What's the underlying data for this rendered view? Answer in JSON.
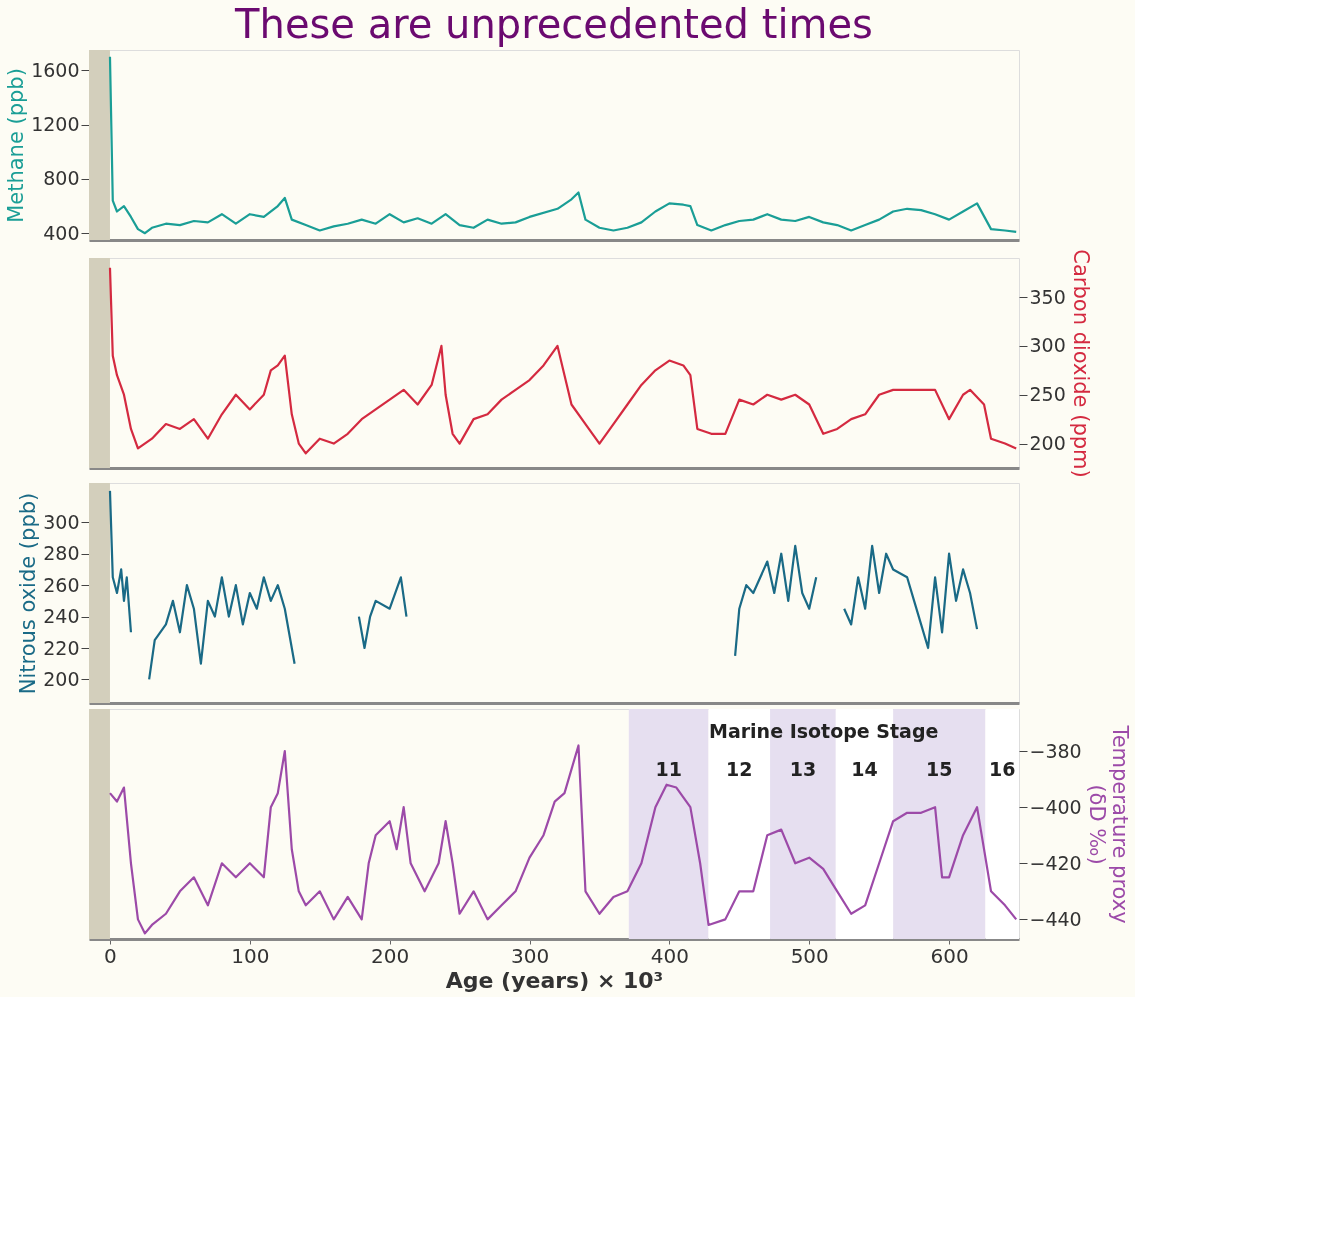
{
  "chart_data": [
    {
      "type": "line",
      "title": "These are unprecedented times",
      "ylabel": "Methane (ppb)",
      "xlim": [
        -15,
        650
      ],
      "ylim": [
        350,
        1750
      ],
      "yticks": [
        400,
        800,
        1200,
        1600
      ],
      "tick_labels": "y",
      "grid": false,
      "line_style": "solid",
      "marker": "none",
      "bands": [
        {
          "axis": "x",
          "from": -15,
          "to": 0,
          "color": "#d3cfbc"
        }
      ],
      "series": [
        {
          "color": "#1a9e96",
          "x": [
            0,
            2,
            5,
            10,
            15,
            20,
            25,
            30,
            40,
            50,
            60,
            70,
            80,
            90,
            100,
            110,
            120,
            125,
            130,
            140,
            150,
            160,
            170,
            180,
            190,
            200,
            210,
            220,
            230,
            240,
            250,
            260,
            270,
            280,
            290,
            300,
            320,
            330,
            335,
            340,
            350,
            360,
            370,
            380,
            390,
            400,
            410,
            415,
            420,
            430,
            440,
            450,
            460,
            470,
            480,
            490,
            500,
            510,
            520,
            530,
            540,
            550,
            560,
            570,
            580,
            590,
            600,
            610,
            620,
            630,
            640,
            648
          ],
          "values": [
            1700,
            640,
            560,
            600,
            520,
            430,
            400,
            440,
            470,
            460,
            490,
            480,
            540,
            470,
            540,
            520,
            600,
            660,
            500,
            460,
            420,
            450,
            470,
            500,
            470,
            540,
            480,
            510,
            470,
            540,
            460,
            440,
            500,
            470,
            480,
            520,
            580,
            650,
            700,
            500,
            440,
            420,
            440,
            480,
            560,
            620,
            610,
            600,
            460,
            420,
            460,
            490,
            500,
            540,
            500,
            490,
            520,
            480,
            460,
            420,
            460,
            500,
            560,
            580,
            570,
            540,
            500,
            560,
            620,
            430,
            420,
            410
          ]
        }
      ]
    },
    {
      "type": "line",
      "y2label": "Carbon dioxide (ppm)",
      "xlim": [
        -15,
        650
      ],
      "y2lim": [
        175,
        390
      ],
      "y2ticks": [
        200,
        250,
        300,
        350
      ],
      "tick_labels": "y",
      "grid": false,
      "line_style": "solid",
      "marker": "none",
      "bands": [
        {
          "axis": "x",
          "from": -15,
          "to": 0,
          "color": "#d3cfbc"
        }
      ],
      "series": [
        {
          "color": "#d42a40",
          "axis": "y2",
          "x": [
            0,
            2,
            5,
            10,
            15,
            20,
            30,
            40,
            50,
            60,
            70,
            80,
            90,
            100,
            110,
            115,
            120,
            125,
            130,
            135,
            140,
            150,
            160,
            170,
            180,
            190,
            200,
            210,
            220,
            230,
            237,
            240,
            245,
            250,
            260,
            270,
            280,
            290,
            300,
            310,
            320,
            325,
            330,
            340,
            350,
            360,
            370,
            380,
            390,
            400,
            410,
            415,
            420,
            430,
            440,
            450,
            460,
            470,
            480,
            490,
            500,
            510,
            520,
            530,
            540,
            550,
            560,
            570,
            580,
            590,
            600,
            610,
            615,
            625,
            630,
            640,
            648
          ],
          "values": [
            380,
            290,
            270,
            250,
            215,
            195,
            205,
            220,
            215,
            225,
            205,
            230,
            250,
            235,
            250,
            275,
            280,
            290,
            230,
            200,
            190,
            205,
            200,
            210,
            225,
            235,
            245,
            255,
            240,
            260,
            300,
            250,
            210,
            200,
            225,
            230,
            245,
            255,
            265,
            280,
            300,
            270,
            240,
            220,
            200,
            220,
            240,
            260,
            275,
            285,
            280,
            270,
            215,
            210,
            210,
            245,
            240,
            250,
            245,
            250,
            240,
            210,
            215,
            225,
            230,
            250,
            255,
            255,
            255,
            255,
            225,
            250,
            255,
            240,
            205,
            200,
            195
          ]
        }
      ]
    },
    {
      "type": "line",
      "ylabel": "Nitrous oxide (ppb)",
      "xlim": [
        -15,
        650
      ],
      "ylim": [
        185,
        325
      ],
      "yticks": [
        200,
        220,
        240,
        260,
        280,
        300
      ],
      "tick_labels": "y",
      "grid": false,
      "line_style": "solid",
      "marker": "none",
      "bands": [
        {
          "axis": "x",
          "from": -15,
          "to": 0,
          "color": "#d3cfbc"
        }
      ],
      "series": [
        {
          "color": "#1a6a86",
          "x": [
            0,
            2,
            5,
            8,
            10,
            12,
            15,
            20,
            28,
            32,
            40,
            45,
            50,
            55,
            60,
            65,
            70,
            75,
            80,
            85,
            90,
            95,
            100,
            105,
            110,
            115,
            120,
            125,
            128,
            132,
            140,
            178,
            182,
            186,
            190,
            200,
            208,
            212,
            300,
            447,
            450,
            455,
            460,
            470,
            475,
            480,
            485,
            490,
            495,
            500,
            505,
            515,
            525,
            530,
            535,
            540,
            545,
            550,
            555,
            560,
            570,
            575,
            580,
            585,
            590,
            595,
            600,
            605,
            610,
            615,
            620
          ],
          "values": [
            320,
            265,
            255,
            270,
            250,
            265,
            230,
            null,
            200,
            225,
            235,
            250,
            230,
            260,
            245,
            210,
            250,
            240,
            265,
            240,
            260,
            235,
            255,
            245,
            265,
            250,
            260,
            245,
            230,
            210,
            null,
            240,
            220,
            240,
            250,
            245,
            265,
            240,
            null,
            215,
            245,
            260,
            255,
            275,
            255,
            280,
            250,
            285,
            255,
            245,
            265,
            null,
            245,
            235,
            265,
            245,
            285,
            255,
            280,
            270,
            265,
            250,
            235,
            220,
            265,
            230,
            280,
            250,
            270,
            255,
            232
          ]
        }
      ]
    },
    {
      "type": "line",
      "xlabel": "Age (years) × 10³",
      "y2label": "Temperature proxy\n(δD ‰)",
      "xlim": [
        -15,
        650
      ],
      "xticks": [
        0,
        100,
        200,
        300,
        400,
        500,
        600
      ],
      "y2lim": [
        -447,
        -365
      ],
      "y2ticks": [
        {
          "value": -380,
          "label": "−380"
        },
        {
          "value": -400,
          "label": "−400"
        },
        {
          "value": -420,
          "label": "−420"
        },
        {
          "value": -440,
          "label": "−440"
        }
      ],
      "grid": false,
      "line_style": "solid",
      "marker": "none",
      "annotations": [
        "Marine Isotope Stage"
      ],
      "bands": [
        {
          "axis": "x",
          "from": -15,
          "to": 0,
          "color": "#d3cfbc"
        },
        {
          "axis": "x",
          "from": 371,
          "to": 428,
          "label": "11",
          "color": "#e6dff0"
        },
        {
          "axis": "x",
          "from": 428,
          "to": 472,
          "label": "12",
          "color": "#ffffff"
        },
        {
          "axis": "x",
          "from": 472,
          "to": 519,
          "label": "13",
          "color": "#e6dff0"
        },
        {
          "axis": "x",
          "from": 519,
          "to": 560,
          "label": "14",
          "color": "#ffffff"
        },
        {
          "axis": "x",
          "from": 560,
          "to": 626,
          "label": "15",
          "color": "#e6dff0"
        },
        {
          "axis": "x",
          "from": 626,
          "to": 650,
          "label": "16",
          "color": "#ffffff"
        }
      ],
      "series": [
        {
          "color": "#9c4aa8",
          "axis": "y2",
          "x": [
            0,
            5,
            10,
            15,
            20,
            25,
            30,
            40,
            50,
            60,
            70,
            80,
            90,
            100,
            110,
            115,
            120,
            125,
            130,
            135,
            140,
            150,
            160,
            170,
            180,
            185,
            190,
            200,
            205,
            210,
            215,
            225,
            235,
            240,
            245,
            250,
            260,
            270,
            280,
            290,
            300,
            310,
            318,
            325,
            335,
            340,
            350,
            360,
            370,
            380,
            390,
            398,
            405,
            415,
            422,
            428,
            440,
            450,
            460,
            470,
            480,
            490,
            500,
            510,
            520,
            530,
            540,
            550,
            560,
            570,
            580,
            590,
            595,
            600,
            610,
            620,
            630,
            640,
            648
          ],
          "values": [
            -395,
            -398,
            -393,
            -420,
            -440,
            -445,
            -442,
            -438,
            -430,
            -425,
            -435,
            -420,
            -425,
            -420,
            -425,
            -400,
            -395,
            -380,
            -415,
            -430,
            -435,
            -430,
            -440,
            -432,
            -440,
            -420,
            -410,
            -405,
            -415,
            -400,
            -420,
            -430,
            -420,
            -405,
            -420,
            -438,
            -430,
            -440,
            -435,
            -430,
            -418,
            -410,
            -398,
            -395,
            -378,
            -430,
            -438,
            -432,
            -430,
            -420,
            -400,
            -392,
            -393,
            -400,
            -420,
            -442,
            -440,
            -430,
            -430,
            -410,
            -408,
            -420,
            -418,
            -422,
            -430,
            -438,
            -435,
            -420,
            -405,
            -402,
            -402,
            -400,
            -425,
            -425,
            -410,
            -400,
            -430,
            -435,
            -440
          ]
        }
      ]
    }
  ]
}
